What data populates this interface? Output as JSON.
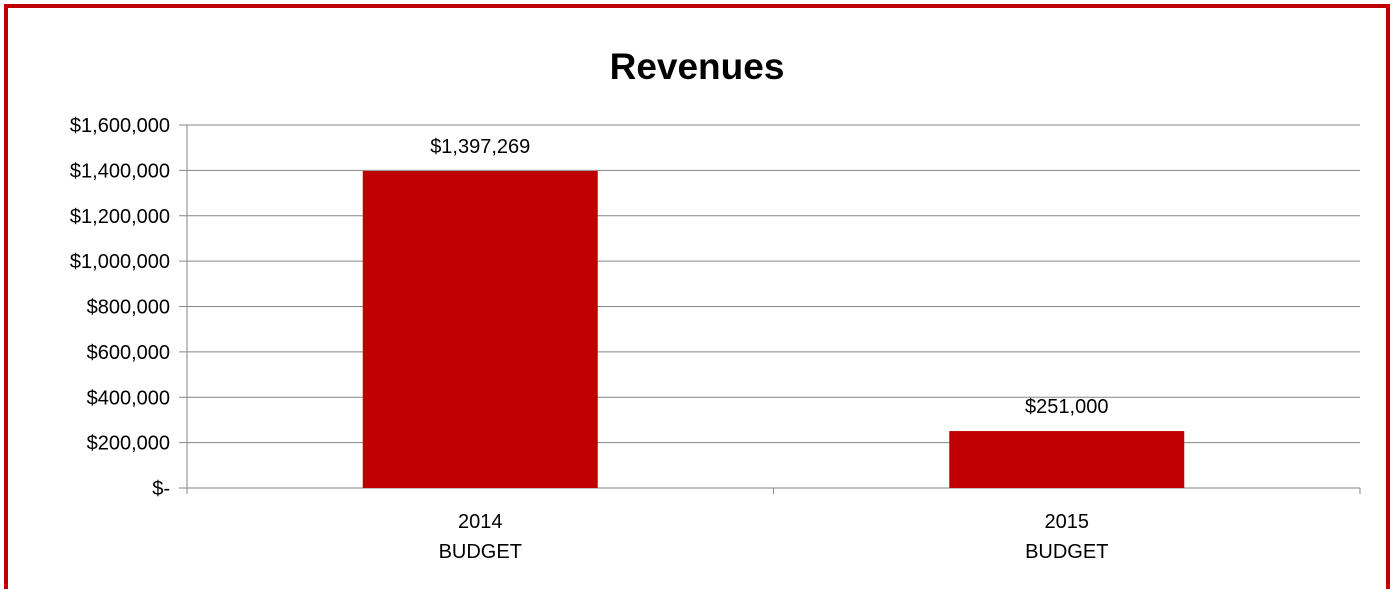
{
  "chart_data": {
    "type": "bar",
    "title": "Revenues",
    "categories": [
      [
        "2014",
        "BUDGET"
      ],
      [
        "2015",
        "BUDGET"
      ]
    ],
    "values": [
      1397269,
      251000
    ],
    "data_labels": [
      "$1,397,269",
      "$251,000"
    ],
    "yticks": [
      0,
      200000,
      400000,
      600000,
      800000,
      1000000,
      1200000,
      1400000,
      1600000
    ],
    "ytick_labels": [
      "$-",
      "$200,000",
      "$400,000",
      "$600,000",
      "$800,000",
      "$1,000,000",
      "$1,200,000",
      "$1,400,000",
      "$1,600,000"
    ],
    "ylim": [
      0,
      1600000
    ],
    "xlabel": "",
    "ylabel": "",
    "grid": true,
    "legend": "none"
  },
  "colors": {
    "bar": "#c00000",
    "frame": "#c00000",
    "grid": "#868686"
  }
}
